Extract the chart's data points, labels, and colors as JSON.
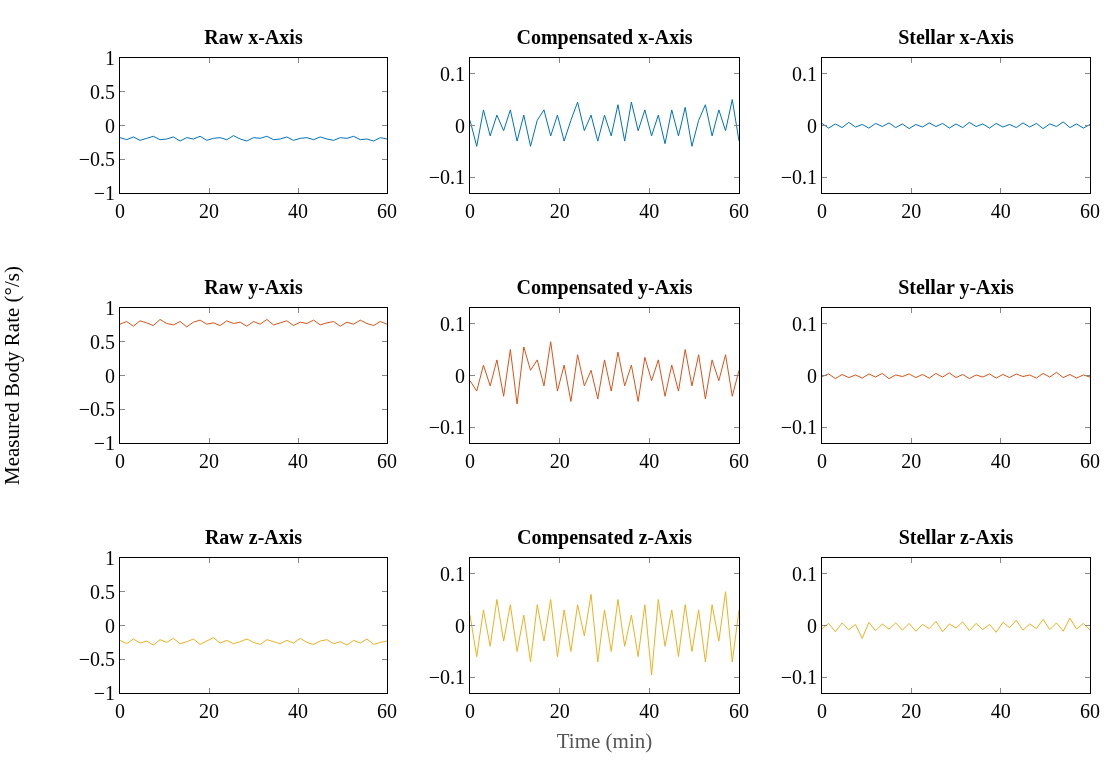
{
  "chart_data": [
    {
      "type": "line",
      "title": "Raw x-Axis",
      "x": [
        0,
        1.5,
        3,
        4.5,
        6,
        7.5,
        9,
        10.5,
        12,
        13.5,
        15,
        16.5,
        18,
        19.5,
        21,
        22.5,
        24,
        25.5,
        27,
        28.5,
        30,
        31.5,
        33,
        34.5,
        36,
        37.5,
        39,
        40.5,
        42,
        43.5,
        45,
        46.5,
        48,
        49.5,
        51,
        52.5,
        54,
        55.5,
        57,
        58.5,
        60
      ],
      "xlim": [
        0,
        60
      ],
      "xticks": [
        0,
        20,
        40,
        60
      ],
      "ylim": [
        -1,
        1
      ],
      "yticks": [
        {
          "value": -1,
          "label": "−1"
        },
        {
          "value": -0.5,
          "label": "−0.5"
        },
        0,
        0.5,
        1
      ],
      "series": [
        {
          "color": "#0072bd",
          "values": [
            -0.18,
            -0.21,
            -0.17,
            -0.22,
            -0.19,
            -0.16,
            -0.21,
            -0.2,
            -0.17,
            -0.23,
            -0.18,
            -0.2,
            -0.16,
            -0.22,
            -0.19,
            -0.18,
            -0.21,
            -0.15,
            -0.2,
            -0.23,
            -0.18,
            -0.19,
            -0.16,
            -0.21,
            -0.2,
            -0.17,
            -0.22,
            -0.19,
            -0.18,
            -0.21,
            -0.17,
            -0.2,
            -0.22,
            -0.18,
            -0.19,
            -0.16,
            -0.21,
            -0.2,
            -0.23,
            -0.18,
            -0.2
          ]
        }
      ]
    },
    {
      "type": "line",
      "title": "Compensated x-Axis",
      "x": [
        0,
        1.5,
        3,
        4.5,
        6,
        7.5,
        9,
        10.5,
        12,
        13.5,
        15,
        16.5,
        18,
        19.5,
        21,
        22.5,
        24,
        25.5,
        27,
        28.5,
        30,
        31.5,
        33,
        34.5,
        36,
        37.5,
        39,
        40.5,
        42,
        43.5,
        45,
        46.5,
        48,
        49.5,
        51,
        52.5,
        54,
        55.5,
        57,
        58.5,
        60
      ],
      "xlim": [
        0,
        60
      ],
      "xticks": [
        0,
        20,
        40,
        60
      ],
      "ylim": [
        -0.13,
        0.13
      ],
      "yticks": [
        {
          "value": -0.1,
          "label": "−0.1"
        },
        0,
        0.1
      ],
      "series": [
        {
          "color": "#0072bd",
          "values": [
            0.01,
            -0.04,
            0.03,
            -0.02,
            0.02,
            -0.01,
            0.03,
            -0.03,
            0.02,
            -0.04,
            0.01,
            0.03,
            -0.02,
            0.02,
            -0.03,
            0.01,
            0.045,
            -0.01,
            0.02,
            -0.03,
            0.02,
            -0.02,
            0.04,
            -0.03,
            0.045,
            -0.01,
            0.03,
            -0.02,
            0.02,
            -0.035,
            0.03,
            -0.02,
            0.035,
            -0.04,
            0.01,
            0.04,
            -0.02,
            0.03,
            -0.01,
            0.05,
            -0.03
          ]
        }
      ]
    },
    {
      "type": "line",
      "title": "Stellar x-Axis",
      "x": [
        0,
        1.5,
        3,
        4.5,
        6,
        7.5,
        9,
        10.5,
        12,
        13.5,
        15,
        16.5,
        18,
        19.5,
        21,
        22.5,
        24,
        25.5,
        27,
        28.5,
        30,
        31.5,
        33,
        34.5,
        36,
        37.5,
        39,
        40.5,
        42,
        43.5,
        45,
        46.5,
        48,
        49.5,
        51,
        52.5,
        54,
        55.5,
        57,
        58.5,
        60
      ],
      "xlim": [
        0,
        60
      ],
      "xticks": [
        0,
        20,
        40,
        60
      ],
      "ylim": [
        -0.13,
        0.13
      ],
      "yticks": [
        {
          "value": -0.1,
          "label": "−0.1"
        },
        0,
        0.1
      ],
      "series": [
        {
          "color": "#0072bd",
          "values": [
            0.004,
            -0.005,
            0.003,
            -0.004,
            0.006,
            -0.003,
            0.002,
            -0.005,
            0.004,
            -0.002,
            0.005,
            -0.004,
            0.003,
            -0.006,
            0.002,
            -0.003,
            0.005,
            -0.002,
            0.004,
            -0.005,
            0.003,
            -0.004,
            0.006,
            -0.002,
            0.003,
            -0.005,
            0.004,
            -0.003,
            0.002,
            -0.004,
            0.005,
            -0.003,
            0.004,
            -0.006,
            0.003,
            -0.002,
            0.007,
            -0.004,
            0.003,
            -0.005,
            0.002
          ]
        }
      ]
    },
    {
      "type": "line",
      "title": "Raw y-Axis",
      "ylabel": "Measured Body Rate (°/s)",
      "x": [
        0,
        1.5,
        3,
        4.5,
        6,
        7.5,
        9,
        10.5,
        12,
        13.5,
        15,
        16.5,
        18,
        19.5,
        21,
        22.5,
        24,
        25.5,
        27,
        28.5,
        30,
        31.5,
        33,
        34.5,
        36,
        37.5,
        39,
        40.5,
        42,
        43.5,
        45,
        46.5,
        48,
        49.5,
        51,
        52.5,
        54,
        55.5,
        57,
        58.5,
        60
      ],
      "xlim": [
        0,
        60
      ],
      "xticks": [
        0,
        20,
        40,
        60
      ],
      "ylim": [
        -1,
        1
      ],
      "yticks": [
        {
          "value": -1,
          "label": "−1"
        },
        {
          "value": -0.5,
          "label": "−0.5"
        },
        0,
        0.5,
        1
      ],
      "series": [
        {
          "color": "#d95319",
          "values": [
            0.76,
            0.8,
            0.73,
            0.81,
            0.78,
            0.74,
            0.83,
            0.77,
            0.75,
            0.8,
            0.72,
            0.79,
            0.82,
            0.76,
            0.78,
            0.74,
            0.81,
            0.77,
            0.79,
            0.73,
            0.8,
            0.76,
            0.83,
            0.75,
            0.78,
            0.81,
            0.74,
            0.79,
            0.77,
            0.82,
            0.75,
            0.78,
            0.8,
            0.73,
            0.79,
            0.76,
            0.82,
            0.77,
            0.74,
            0.8,
            0.76
          ]
        }
      ]
    },
    {
      "type": "line",
      "title": "Compensated y-Axis",
      "x": [
        0,
        1.5,
        3,
        4.5,
        6,
        7.5,
        9,
        10.5,
        12,
        13.5,
        15,
        16.5,
        18,
        19.5,
        21,
        22.5,
        24,
        25.5,
        27,
        28.5,
        30,
        31.5,
        33,
        34.5,
        36,
        37.5,
        39,
        40.5,
        42,
        43.5,
        45,
        46.5,
        48,
        49.5,
        51,
        52.5,
        54,
        55.5,
        57,
        58.5,
        60
      ],
      "xlim": [
        0,
        60
      ],
      "xticks": [
        0,
        20,
        40,
        60
      ],
      "ylim": [
        -0.13,
        0.13
      ],
      "yticks": [
        {
          "value": -0.1,
          "label": "−0.1"
        },
        0,
        0.1
      ],
      "series": [
        {
          "color": "#d95319",
          "values": [
            -0.01,
            -0.03,
            0.02,
            -0.02,
            0.03,
            -0.04,
            0.05,
            -0.055,
            0.055,
            0.01,
            0.03,
            -0.02,
            0.065,
            -0.03,
            0.02,
            -0.05,
            0.04,
            -0.02,
            0.01,
            -0.045,
            0.03,
            -0.03,
            0.045,
            -0.02,
            0.02,
            -0.05,
            0.035,
            -0.01,
            0.03,
            -0.04,
            0.02,
            -0.03,
            0.05,
            -0.02,
            0.04,
            -0.045,
            0.03,
            -0.01,
            0.04,
            -0.04,
            0.01
          ]
        }
      ]
    },
    {
      "type": "line",
      "title": "Stellar y-Axis",
      "x": [
        0,
        1.5,
        3,
        4.5,
        6,
        7.5,
        9,
        10.5,
        12,
        13.5,
        15,
        16.5,
        18,
        19.5,
        21,
        22.5,
        24,
        25.5,
        27,
        28.5,
        30,
        31.5,
        33,
        34.5,
        36,
        37.5,
        39,
        40.5,
        42,
        43.5,
        45,
        46.5,
        48,
        49.5,
        51,
        52.5,
        54,
        55.5,
        57,
        58.5,
        60
      ],
      "xlim": [
        0,
        60
      ],
      "xticks": [
        0,
        20,
        40,
        60
      ],
      "ylim": [
        -0.13,
        0.13
      ],
      "yticks": [
        {
          "value": -0.1,
          "label": "−0.1"
        },
        0,
        0.1
      ],
      "series": [
        {
          "color": "#d95319",
          "values": [
            -0.002,
            0.003,
            -0.006,
            0.002,
            -0.004,
            0.001,
            -0.005,
            0.003,
            -0.003,
            0.004,
            -0.006,
            0.001,
            -0.002,
            0.003,
            -0.004,
            0.002,
            -0.005,
            0.004,
            -0.003,
            0.005,
            -0.004,
            0.002,
            -0.006,
            0.001,
            -0.003,
            0.003,
            -0.005,
            0.002,
            -0.004,
            0.003,
            -0.002,
            0.001,
            -0.005,
            0.004,
            -0.003,
            0.006,
            -0.004,
            0.002,
            -0.005,
            0.001,
            -0.003
          ]
        }
      ]
    },
    {
      "type": "line",
      "title": "Raw z-Axis",
      "x": [
        0,
        1.5,
        3,
        4.5,
        6,
        7.5,
        9,
        10.5,
        12,
        13.5,
        15,
        16.5,
        18,
        19.5,
        21,
        22.5,
        24,
        25.5,
        27,
        28.5,
        30,
        31.5,
        33,
        34.5,
        36,
        37.5,
        39,
        40.5,
        42,
        43.5,
        45,
        46.5,
        48,
        49.5,
        51,
        52.5,
        54,
        55.5,
        57,
        58.5,
        60
      ],
      "xlim": [
        0,
        60
      ],
      "xticks": [
        0,
        20,
        40,
        60
      ],
      "ylim": [
        -1,
        1
      ],
      "yticks": [
        {
          "value": -1,
          "label": "−1"
        },
        {
          "value": -0.5,
          "label": "−0.5"
        },
        0,
        0.5,
        1
      ],
      "series": [
        {
          "color": "#edb120",
          "values": [
            -0.22,
            -0.27,
            -0.2,
            -0.26,
            -0.23,
            -0.29,
            -0.21,
            -0.25,
            -0.19,
            -0.27,
            -0.24,
            -0.2,
            -0.28,
            -0.23,
            -0.18,
            -0.26,
            -0.22,
            -0.27,
            -0.24,
            -0.2,
            -0.25,
            -0.28,
            -0.21,
            -0.24,
            -0.27,
            -0.22,
            -0.26,
            -0.19,
            -0.25,
            -0.28,
            -0.23,
            -0.21,
            -0.27,
            -0.24,
            -0.29,
            -0.22,
            -0.26,
            -0.2,
            -0.28,
            -0.25,
            -0.23
          ]
        }
      ]
    },
    {
      "type": "line",
      "title": "Compensated z-Axis",
      "xlabel": "Time (min)",
      "x": [
        0,
        1.5,
        3,
        4.5,
        6,
        7.5,
        9,
        10.5,
        12,
        13.5,
        15,
        16.5,
        18,
        19.5,
        21,
        22.5,
        24,
        25.5,
        27,
        28.5,
        30,
        31.5,
        33,
        34.5,
        36,
        37.5,
        39,
        40.5,
        42,
        43.5,
        45,
        46.5,
        48,
        49.5,
        51,
        52.5,
        54,
        55.5,
        57,
        58.5,
        60
      ],
      "xlim": [
        0,
        60
      ],
      "xticks": [
        0,
        20,
        40,
        60
      ],
      "ylim": [
        -0.13,
        0.13
      ],
      "yticks": [
        {
          "value": -0.1,
          "label": "−0.1"
        },
        0,
        0.1
      ],
      "series": [
        {
          "color": "#edb120",
          "values": [
            0.02,
            -0.06,
            0.03,
            -0.04,
            0.05,
            -0.03,
            0.04,
            -0.05,
            0.02,
            -0.07,
            0.04,
            -0.03,
            0.05,
            -0.06,
            0.03,
            -0.05,
            0.04,
            -0.02,
            0.06,
            -0.07,
            0.03,
            -0.05,
            0.05,
            -0.04,
            0.02,
            -0.06,
            0.04,
            -0.095,
            0.05,
            -0.04,
            0.03,
            -0.06,
            0.04,
            -0.05,
            0.03,
            -0.07,
            0.04,
            -0.03,
            0.065,
            -0.07,
            0.03
          ]
        }
      ]
    },
    {
      "type": "line",
      "title": "Stellar z-Axis",
      "x": [
        0,
        1.5,
        3,
        4.5,
        6,
        7.5,
        9,
        10.5,
        12,
        13.5,
        15,
        16.5,
        18,
        19.5,
        21,
        22.5,
        24,
        25.5,
        27,
        28.5,
        30,
        31.5,
        33,
        34.5,
        36,
        37.5,
        39,
        40.5,
        42,
        43.5,
        45,
        46.5,
        48,
        49.5,
        51,
        52.5,
        54,
        55.5,
        57,
        58.5,
        60
      ],
      "xlim": [
        0,
        60
      ],
      "xticks": [
        0,
        20,
        40,
        60
      ],
      "ylim": [
        -0.13,
        0.13
      ],
      "yticks": [
        {
          "value": -0.1,
          "label": "−0.1"
        },
        0,
        0.1
      ],
      "series": [
        {
          "color": "#edb120",
          "values": [
            -0.006,
            0.004,
            -0.012,
            0.005,
            -0.008,
            0.002,
            -0.025,
            0.006,
            -0.01,
            0.003,
            -0.007,
            0.005,
            -0.009,
            0.004,
            -0.011,
            0.002,
            -0.006,
            0.008,
            -0.012,
            0.003,
            -0.005,
            0.007,
            -0.01,
            0.004,
            -0.008,
            0.002,
            -0.013,
            0.006,
            -0.004,
            0.01,
            -0.009,
            0.003,
            -0.006,
            0.012,
            -0.008,
            0.005,
            -0.011,
            0.014,
            -0.007,
            0.004,
            -0.009
          ]
        }
      ]
    }
  ]
}
